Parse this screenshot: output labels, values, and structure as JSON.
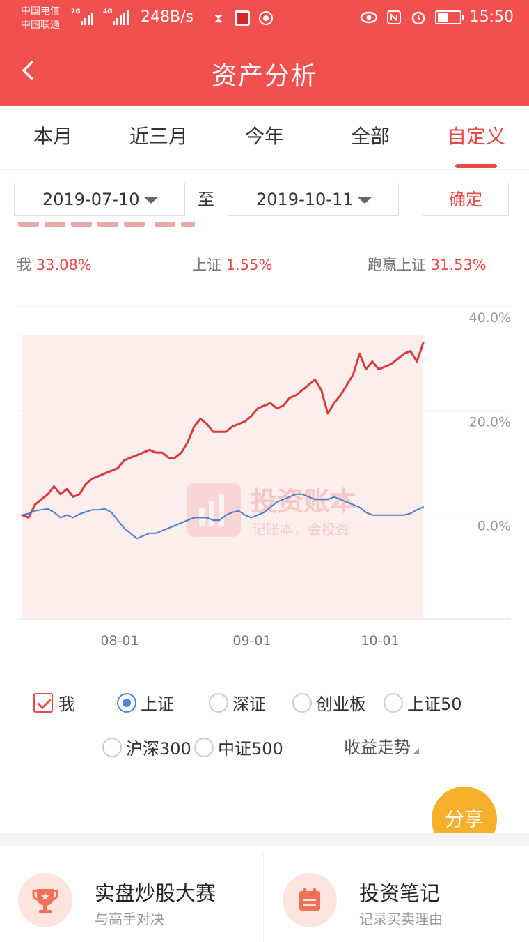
{
  "status_bar": {
    "carrier_1": "中国电信",
    "carrier_2": "中国联通",
    "net_1": "2G",
    "net_2": "4G",
    "speed": "248B/s",
    "time": "15:50",
    "icons": [
      "hourglass-icon",
      "app-notification-icon",
      "vpn-icon",
      "eye-icon",
      "nfc-icon",
      "alarm-icon",
      "battery-icon"
    ]
  },
  "header": {
    "title": "资产分析",
    "back_icon": "chevron-left-icon"
  },
  "tabs": [
    {
      "label": "本月"
    },
    {
      "label": "近三月"
    },
    {
      "label": "今年"
    },
    {
      "label": "全部"
    },
    {
      "label": "自定义",
      "active": true
    }
  ],
  "date_range": {
    "start": "2019-07-10",
    "separator": "至",
    "end": "2019-10-11",
    "confirm_label": "确定"
  },
  "summary": {
    "me_label": "我",
    "me_value": "33.08%",
    "sh_label": "上证",
    "sh_value": "1.55%",
    "beat_label": "跑赢上证",
    "beat_value": "31.53%"
  },
  "watermark": {
    "title": "投资账本",
    "subtitle": "记账本，会投资"
  },
  "chart_data": {
    "type": "line",
    "y_tick_labels": [
      "40.0%",
      "20.0%",
      "0.0%"
    ],
    "ylim": [
      -20,
      40
    ],
    "x_tick_labels": [
      "08-01",
      "09-01",
      "10-01"
    ],
    "grid": true,
    "colors": {
      "me": "#d9393b",
      "sh": "#4a7cc9",
      "fill": "#fdeeee"
    },
    "series": [
      {
        "name": "我",
        "values": [
          0,
          -0.5,
          2,
          3,
          4,
          5.5,
          4,
          5,
          3.5,
          4,
          6,
          7,
          7.5,
          8,
          8.5,
          9,
          10.5,
          11,
          11.5,
          12,
          12.5,
          12,
          12,
          11,
          11,
          12,
          14,
          17,
          18.5,
          17.5,
          16,
          16,
          16,
          17,
          17.5,
          18,
          19,
          20.5,
          21,
          21.5,
          20.5,
          21,
          22.5,
          23,
          24,
          25,
          26,
          24,
          19.5,
          21.5,
          23,
          25,
          27,
          31,
          28,
          29.5,
          28,
          28.5,
          29,
          30,
          31,
          31.5,
          29.5,
          33.08
        ]
      },
      {
        "name": "上证",
        "values": [
          0,
          0.3,
          0.8,
          1,
          1.2,
          0.5,
          -0.5,
          0,
          -0.5,
          0.2,
          0.6,
          1,
          1,
          1.2,
          0.5,
          -1,
          -2.5,
          -3.5,
          -4.5,
          -4,
          -3.5,
          -3.5,
          -3,
          -2.5,
          -2,
          -1.5,
          -1,
          -0.5,
          -0.5,
          -0.5,
          -1,
          -1,
          0,
          0.5,
          0.8,
          0,
          -0.5,
          0,
          0.5,
          1.5,
          2.5,
          3,
          3.5,
          4,
          4,
          3.5,
          3,
          3,
          3,
          3.5,
          3,
          2.5,
          2,
          1.5,
          0.5,
          0,
          0,
          0,
          0,
          0,
          0,
          0.3,
          1,
          1.55
        ]
      }
    ]
  },
  "legend": {
    "items": [
      {
        "label": "我",
        "type": "checkbox",
        "checked": true
      },
      {
        "label": "上证",
        "type": "radio",
        "checked": true
      },
      {
        "label": "深证",
        "type": "radio",
        "checked": false
      },
      {
        "label": "创业板",
        "type": "radio",
        "checked": false
      },
      {
        "label": "上证50",
        "type": "radio",
        "checked": false
      },
      {
        "label": "沪深300",
        "type": "radio",
        "checked": false
      },
      {
        "label": "中证500",
        "type": "radio",
        "checked": false
      }
    ],
    "trend_label": "收益走势"
  },
  "share_label": "分享",
  "cards": [
    {
      "title": "实盘炒股大赛",
      "subtitle": "与高手对决",
      "icon": "trophy-icon"
    },
    {
      "title": "投资笔记",
      "subtitle": "记录买卖理由",
      "icon": "calendar-note-icon"
    }
  ]
}
